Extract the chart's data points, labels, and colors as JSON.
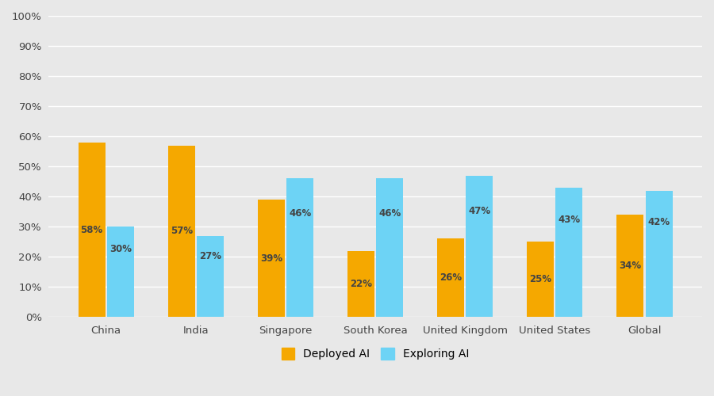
{
  "categories": [
    "China",
    "India",
    "Singapore",
    "South Korea",
    "United Kingdom",
    "United States",
    "Global"
  ],
  "deployed_ai": [
    58,
    57,
    39,
    22,
    26,
    25,
    34
  ],
  "exploring_ai": [
    30,
    27,
    46,
    46,
    47,
    43,
    42
  ],
  "deployed_color": "#F5A800",
  "exploring_color": "#6DD3F5",
  "background_color": "#E8E8E8",
  "bar_width": 0.3,
  "bar_gap": 0.02,
  "ylim": [
    0,
    100
  ],
  "yticks": [
    0,
    10,
    20,
    30,
    40,
    50,
    60,
    70,
    80,
    90,
    100
  ],
  "ytick_labels": [
    "0%",
    "10%",
    "20%",
    "30%",
    "40%",
    "50%",
    "60%",
    "70%",
    "80%",
    "90%",
    "100%"
  ],
  "legend_labels": [
    "Deployed AI",
    "Exploring AI"
  ],
  "label_fontsize": 8.5,
  "tick_fontsize": 9.5,
  "legend_fontsize": 10,
  "grid_color": "#FFFFFF",
  "text_color": "#444444"
}
